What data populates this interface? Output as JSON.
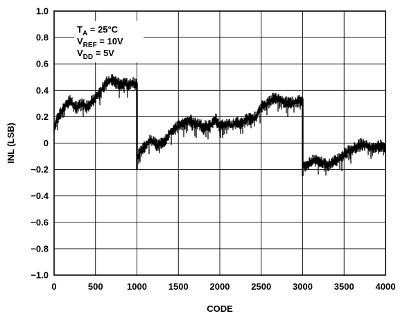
{
  "chart_data": {
    "type": "line",
    "title": "",
    "xlabel": "CODE",
    "ylabel": "INL (LSB)",
    "xlim": [
      0,
      4000
    ],
    "ylim": [
      -1.0,
      1.0
    ],
    "x_ticks": [
      0,
      500,
      1000,
      1500,
      2000,
      2500,
      3000,
      3500,
      4000
    ],
    "x_tick_labels": [
      "0",
      "500",
      "1000",
      "1500",
      "2000",
      "2500",
      "3000",
      "3500",
      "4000"
    ],
    "y_ticks": [
      -1.0,
      -0.8,
      -0.6,
      -0.4,
      -0.2,
      0,
      0.2,
      0.4,
      0.6,
      0.8,
      1.0
    ],
    "y_tick_labels": [
      "−1.0",
      "−0.8",
      "−0.6",
      "−0.4",
      "−0.2",
      "0",
      "0.2",
      "0.4",
      "0.6",
      "0.8",
      "1.0"
    ],
    "grid": true,
    "noise_amplitude": 0.035,
    "annotations": [
      {
        "main": "T",
        "sub": "A",
        "rest": " = 25°C"
      },
      {
        "main": "V",
        "sub": "REF",
        "rest": " = 10V"
      },
      {
        "main": "V",
        "sub": "DD",
        "rest": " = 5V"
      }
    ],
    "series": [
      {
        "color": "#000000",
        "x": [
          0,
          50,
          100,
          150,
          200,
          250,
          300,
          350,
          400,
          450,
          500,
          550,
          600,
          650,
          700,
          750,
          800,
          850,
          900,
          950,
          999,
          1000,
          1050,
          1100,
          1150,
          1200,
          1250,
          1300,
          1350,
          1400,
          1450,
          1500,
          1550,
          1600,
          1650,
          1700,
          1750,
          1800,
          1850,
          1900,
          1950,
          2000,
          2050,
          2100,
          2150,
          2200,
          2250,
          2300,
          2350,
          2400,
          2450,
          2500,
          2550,
          2600,
          2650,
          2700,
          2750,
          2800,
          2850,
          2900,
          2950,
          2999,
          3000,
          3050,
          3100,
          3150,
          3200,
          3250,
          3300,
          3350,
          3400,
          3450,
          3500,
          3550,
          3600,
          3650,
          3700,
          3750,
          3800,
          3850,
          3900,
          3950,
          4000
        ],
        "y": [
          0.12,
          0.2,
          0.25,
          0.3,
          0.32,
          0.27,
          0.28,
          0.3,
          0.27,
          0.31,
          0.34,
          0.38,
          0.43,
          0.47,
          0.48,
          0.46,
          0.44,
          0.45,
          0.44,
          0.46,
          0.44,
          -0.12,
          -0.05,
          -0.03,
          0.02,
          0.01,
          -0.02,
          0.0,
          0.02,
          0.08,
          0.1,
          0.13,
          0.14,
          0.16,
          0.17,
          0.15,
          0.14,
          0.12,
          0.13,
          0.14,
          0.18,
          0.12,
          0.14,
          0.15,
          0.13,
          0.16,
          0.14,
          0.17,
          0.19,
          0.18,
          0.21,
          0.27,
          0.29,
          0.31,
          0.34,
          0.33,
          0.32,
          0.31,
          0.3,
          0.31,
          0.32,
          0.32,
          -0.17,
          -0.17,
          -0.14,
          -0.13,
          -0.14,
          -0.15,
          -0.17,
          -0.15,
          -0.13,
          -0.12,
          -0.09,
          -0.06,
          -0.05,
          -0.03,
          -0.01,
          -0.01,
          -0.03,
          -0.04,
          -0.02,
          -0.02,
          -0.03
        ]
      }
    ]
  }
}
